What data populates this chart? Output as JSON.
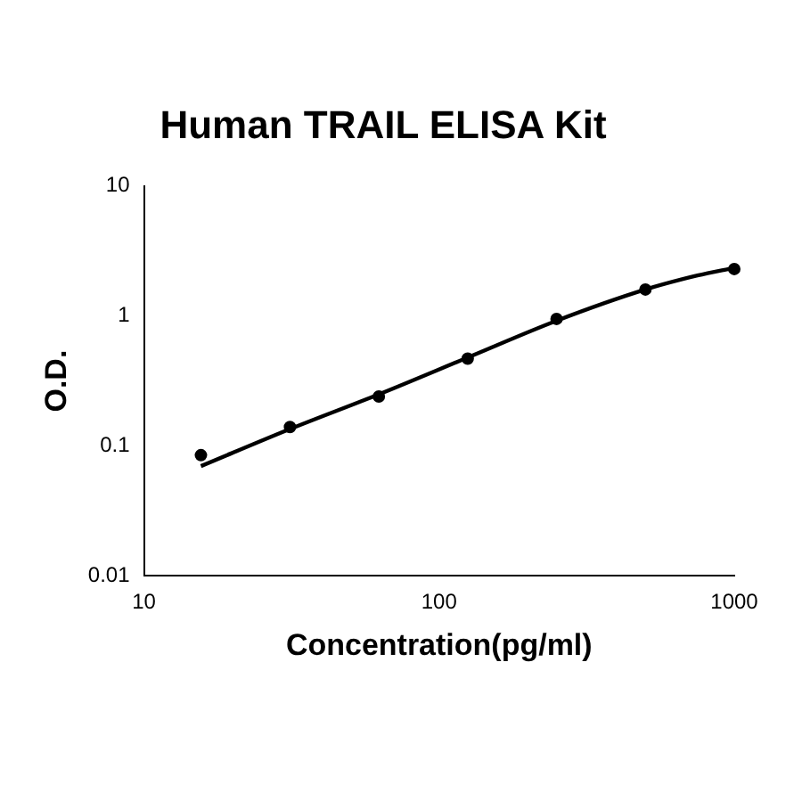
{
  "chart_data": {
    "type": "scatter",
    "title": "Human TRAIL ELISA Kit",
    "xlabel": "Concentration(pg/ml)",
    "ylabel": "O.D.",
    "log": "xy",
    "xlim": [
      10,
      1000
    ],
    "xticks": [
      10,
      100,
      1000
    ],
    "ylim": [
      0.01,
      10
    ],
    "yticks": [
      0.01,
      0.1,
      1,
      10
    ],
    "grid": false,
    "legend": false,
    "series": [
      {
        "type": "scatter",
        "color": "#000000",
        "marker": "circle",
        "x": [
          15.6,
          31.25,
          62.5,
          125,
          250,
          500,
          1000
        ],
        "values": [
          0.085,
          0.14,
          0.24,
          0.47,
          0.95,
          1.6,
          2.3
        ]
      },
      {
        "type": "line",
        "color": "#000000",
        "marker": "none",
        "line_style": "solid",
        "x": [
          15.6,
          31.25,
          62.5,
          125,
          250,
          500,
          750,
          1000
        ],
        "values": [
          0.07,
          0.135,
          0.25,
          0.48,
          0.92,
          1.6,
          2.05,
          2.35
        ]
      }
    ]
  }
}
